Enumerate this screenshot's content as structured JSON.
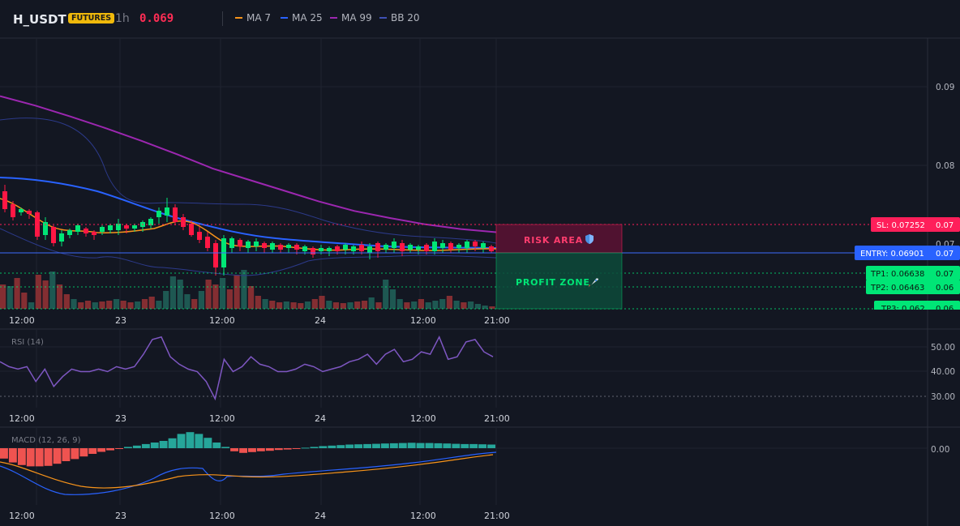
{
  "header": {
    "symbol": "H_USDT",
    "badge": "FUTURES",
    "timeframe": "1h",
    "last_price": "0.069",
    "legend": [
      {
        "label": "MA 7",
        "color": "#f7931a"
      },
      {
        "label": "MA 25",
        "color": "#2962ff"
      },
      {
        "label": "MA 99",
        "color": "#9c27b0"
      },
      {
        "label": "BB 20",
        "color": "#3f51b5"
      }
    ]
  },
  "colors": {
    "background": "#131722",
    "up": "#26a69a",
    "up_bright": "#00e676",
    "down": "#ef5350",
    "down_bright": "#ff1744",
    "entry": "#2962ff",
    "sl": "#ff1f5a",
    "tp": "#00e676"
  },
  "price_panel": {
    "y_ticks": [
      "0.09",
      "0.08",
      "0.07"
    ],
    "x_ticks": [
      "12:00",
      "23",
      "12:00",
      "24",
      "12:00",
      "21:00"
    ],
    "sl_label": "SL: 0.07252",
    "sl_value": "0.07",
    "entry_label": "ENTRY: 0.06901",
    "entry_value": "0.07",
    "tp1_label": "TP1: 0.06638",
    "tp1_value": "0.07",
    "tp2_label": "TP2: 0.06463",
    "tp2_value": "0.06",
    "tp3_label": "TP3: 0.062",
    "tp3_value": "0.06",
    "risk_label": "RISK AREA",
    "profit_label": "PROFIT ZONE",
    "risk_icon": "shield-icon",
    "profit_icon": "rocket-icon"
  },
  "rsi_panel": {
    "title": "RSI (14)",
    "y_ticks": [
      "50.00",
      "40.00",
      "30.00"
    ],
    "x_ticks": [
      "12:00",
      "23",
      "12:00",
      "24",
      "12:00",
      "21:00"
    ]
  },
  "macd_panel": {
    "title": "MACD (12, 26, 9)",
    "y_ticks": [
      "0.00"
    ],
    "x_ticks": [
      "12:00",
      "23",
      "12:00",
      "24",
      "12:00",
      "21:00"
    ]
  },
  "chart_data": [
    {
      "type": "candlestick",
      "title": "H_USDT 1h",
      "y_ticks": [
        0.09,
        0.08,
        0.07
      ],
      "x_ticks": [
        "12:00",
        "23",
        "12:00",
        "24",
        "12:00",
        "21:00"
      ],
      "levels": {
        "sl": 0.07252,
        "entry": 0.06901,
        "tp1": 0.06638,
        "tp2": 0.06463,
        "tp3": 0.062
      },
      "ma99": [
        0.0888,
        0.0876,
        0.0862,
        0.0847,
        0.0831,
        0.0814,
        0.0796,
        0.0782,
        0.0768,
        0.0754,
        0.0742,
        0.0733,
        0.0725,
        0.0719,
        0.0715
      ]
    },
    {
      "type": "line",
      "title": "RSI (14)",
      "y_ticks": [
        50,
        40,
        30
      ],
      "values": [
        44,
        42,
        41,
        42,
        36,
        41,
        34,
        38,
        41,
        40,
        40,
        41,
        40,
        42,
        41,
        42,
        47,
        53,
        54,
        46,
        43,
        41,
        40,
        36,
        29,
        45,
        40,
        42,
        46,
        43,
        42,
        40,
        40,
        41,
        43,
        42,
        40,
        41,
        42,
        44,
        45,
        47,
        43,
        47,
        49,
        44,
        45,
        48,
        47,
        54,
        45,
        46,
        52,
        53,
        48,
        46
      ]
    },
    {
      "type": "bar",
      "title": "MACD (12, 26, 9)",
      "y_ticks": [
        0
      ],
      "histogram": [
        -0.4,
        -0.55,
        -0.65,
        -0.7,
        -0.7,
        -0.68,
        -0.6,
        -0.5,
        -0.42,
        -0.32,
        -0.22,
        -0.14,
        -0.08,
        -0.02,
        0.05,
        0.1,
        0.16,
        0.22,
        0.28,
        0.38,
        0.55,
        0.62,
        0.55,
        0.4,
        0.22,
        0.05,
        -0.12,
        -0.18,
        -0.15,
        -0.12,
        -0.1,
        -0.07,
        -0.05,
        -0.02,
        0.02,
        0.05,
        0.08,
        0.1,
        0.12,
        0.14,
        0.15,
        0.16,
        0.17,
        0.18,
        0.19,
        0.2,
        0.21,
        0.2,
        0.2,
        0.19,
        0.18,
        0.17,
        0.16,
        0.16,
        0.15,
        0.14
      ]
    }
  ]
}
